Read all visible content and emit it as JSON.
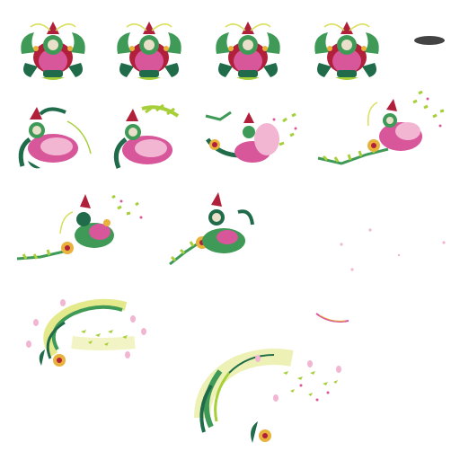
{
  "sheet": {
    "background": "#ffffff",
    "palette": {
      "leaf_dark": "#1f6b4a",
      "leaf_mid": "#3e9a56",
      "leaf_light": "#a6cf3a",
      "petal_pink": "#d7579a",
      "petal_light": "#f2b6d3",
      "crimson": "#b0203a",
      "gold": "#e8b23c",
      "vine_yellow": "#d9df5a",
      "shadow": "#222222"
    },
    "frames": [
      {
        "name": "idle-frame-1",
        "kind": "idle"
      },
      {
        "name": "idle-frame-2",
        "kind": "idle"
      },
      {
        "name": "idle-frame-3",
        "kind": "idle"
      },
      {
        "name": "idle-frame-4",
        "kind": "idle"
      },
      {
        "name": "ground-shadow",
        "kind": "shadow"
      },
      {
        "name": "attack-frame-1",
        "kind": "lunge"
      },
      {
        "name": "attack-frame-2",
        "kind": "lunge"
      },
      {
        "name": "attack-frame-3",
        "kind": "dash"
      },
      {
        "name": "attack-frame-4",
        "kind": "dash"
      },
      {
        "name": "attack-frame-5",
        "kind": "dash"
      },
      {
        "name": "attack-frame-6",
        "kind": "dash"
      },
      {
        "name": "petal-scatter",
        "kind": "particles"
      },
      {
        "name": "vine-swirl-effect-1",
        "kind": "effect"
      },
      {
        "name": "slash-spark",
        "kind": "spark"
      },
      {
        "name": "vine-swirl-effect-2",
        "kind": "effect"
      }
    ]
  }
}
